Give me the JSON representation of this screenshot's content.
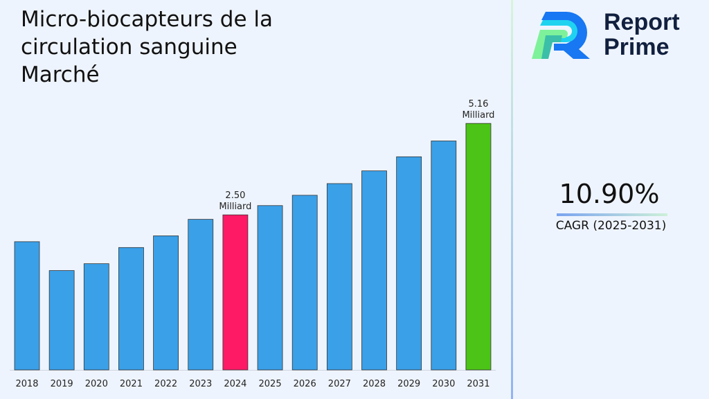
{
  "chart_data": {
    "type": "bar",
    "title": "Micro-biocapteurs de la circulation sanguine Marché",
    "categories": [
      "2018",
      "2019",
      "2020",
      "2021",
      "2022",
      "2023",
      "2024",
      "2025",
      "2026",
      "2027",
      "2028",
      "2029",
      "2030",
      "2031"
    ],
    "values": [
      1.72,
      0.88,
      1.08,
      1.55,
      1.89,
      2.37,
      2.5,
      2.77,
      3.07,
      3.41,
      3.78,
      4.19,
      4.65,
      5.16
    ],
    "unit": "Milliard",
    "data_labels": {
      "2024": [
        "2.50",
        "Milliard"
      ],
      "2031": [
        "5.16",
        "Milliard"
      ]
    },
    "highlight_colors": {
      "2024": "#FF1A66",
      "2031": "#4CC417"
    },
    "bar_color": "#3AA0E8",
    "grid": false,
    "legend": "none"
  },
  "brand": {
    "line1": "Report",
    "line2": "Prime"
  },
  "cagr": {
    "value": "10.90%",
    "label": "CAGR (2025-2031)"
  }
}
